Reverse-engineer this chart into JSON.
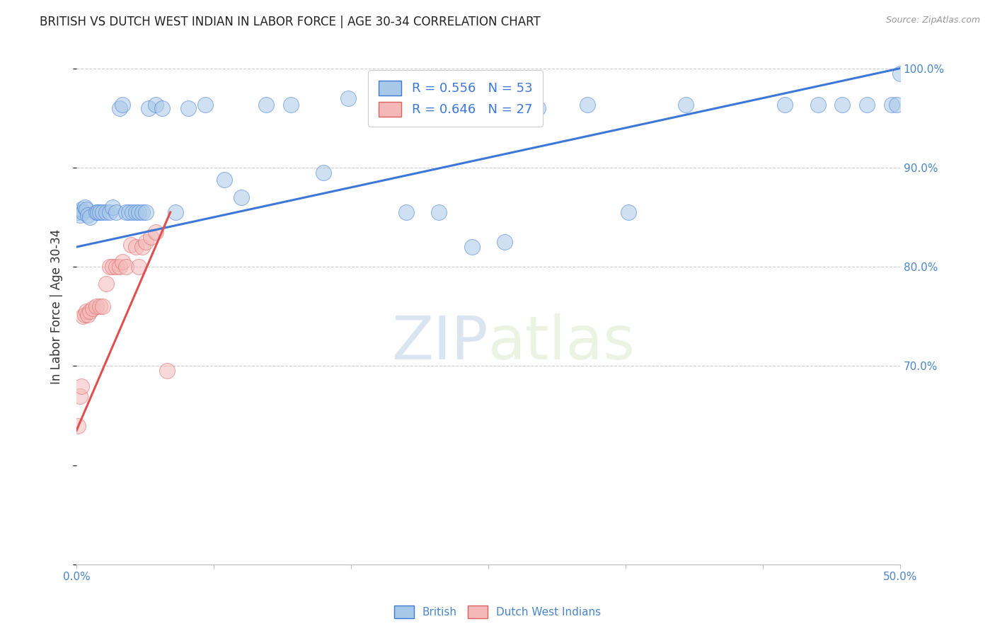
{
  "title": "BRITISH VS DUTCH WEST INDIAN IN LABOR FORCE | AGE 30-34 CORRELATION CHART",
  "source": "Source: ZipAtlas.com",
  "ylabel": "In Labor Force | Age 30-34",
  "xlim": [
    0.0,
    0.5
  ],
  "ylim": [
    0.5,
    1.02
  ],
  "xtick_positions": [
    0.0,
    0.0833,
    0.1667,
    0.25,
    0.3333,
    0.4167,
    0.5
  ],
  "xtick_labels": [
    "0.0%",
    "",
    "",
    "",
    "",
    "",
    "50.0%"
  ],
  "ytick_vals": [
    1.0,
    0.9,
    0.8,
    0.7
  ],
  "ytick_labels": [
    "100.0%",
    "90.0%",
    "80.0%",
    "70.0%"
  ],
  "legend_blue_r": "R = 0.556",
  "legend_blue_n": "N = 53",
  "legend_pink_r": "R = 0.646",
  "legend_pink_n": "N = 27",
  "watermark_zip": "ZIP",
  "watermark_atlas": "atlas",
  "blue_fill": "#a8c8e8",
  "blue_edge": "#3c78d8",
  "pink_fill": "#f4b8b8",
  "pink_edge": "#e06060",
  "blue_line": "#3c78d8",
  "pink_line": "#e05050",
  "bg_color": "#ffffff",
  "grid_color": "#cccccc",
  "axis_color": "#4a86c8",
  "title_color": "#222222",
  "british_x": [
    0.001,
    0.002,
    0.003,
    0.004,
    0.005,
    0.006,
    0.007,
    0.008,
    0.012,
    0.013,
    0.014,
    0.016,
    0.018,
    0.02,
    0.022,
    0.024,
    0.026,
    0.028,
    0.03,
    0.032,
    0.034,
    0.036,
    0.038,
    0.04,
    0.042,
    0.044,
    0.048,
    0.052,
    0.06,
    0.068,
    0.078,
    0.09,
    0.1,
    0.115,
    0.13,
    0.15,
    0.165,
    0.185,
    0.2,
    0.22,
    0.24,
    0.26,
    0.28,
    0.31,
    0.335,
    0.37,
    0.43,
    0.45,
    0.465,
    0.48,
    0.495,
    0.498,
    0.5
  ],
  "british_y": [
    0.855,
    0.852,
    0.858,
    0.855,
    0.86,
    0.858,
    0.852,
    0.85,
    0.855,
    0.855,
    0.855,
    0.855,
    0.855,
    0.855,
    0.86,
    0.855,
    0.96,
    0.963,
    0.855,
    0.855,
    0.855,
    0.855,
    0.855,
    0.855,
    0.855,
    0.96,
    0.963,
    0.96,
    0.855,
    0.96,
    0.963,
    0.888,
    0.87,
    0.963,
    0.963,
    0.895,
    0.97,
    0.963,
    0.855,
    0.855,
    0.82,
    0.825,
    0.96,
    0.963,
    0.855,
    0.963,
    0.963,
    0.963,
    0.963,
    0.963,
    0.963,
    0.963,
    0.995
  ],
  "dutch_x": [
    0.001,
    0.002,
    0.003,
    0.004,
    0.005,
    0.006,
    0.007,
    0.008,
    0.01,
    0.012,
    0.014,
    0.016,
    0.018,
    0.02,
    0.022,
    0.024,
    0.026,
    0.028,
    0.03,
    0.033,
    0.036,
    0.038,
    0.04,
    0.042,
    0.045,
    0.048,
    0.055
  ],
  "dutch_y": [
    0.64,
    0.67,
    0.68,
    0.75,
    0.752,
    0.755,
    0.752,
    0.755,
    0.758,
    0.76,
    0.76,
    0.76,
    0.783,
    0.8,
    0.8,
    0.8,
    0.8,
    0.805,
    0.8,
    0.822,
    0.82,
    0.8,
    0.82,
    0.825,
    0.83,
    0.835,
    0.695
  ],
  "blue_trendline_x": [
    0.0,
    0.5
  ],
  "blue_trendline_y": [
    0.82,
    1.0
  ],
  "pink_trendline_x": [
    0.0,
    0.057
  ],
  "pink_trendline_y": [
    0.635,
    0.855
  ]
}
